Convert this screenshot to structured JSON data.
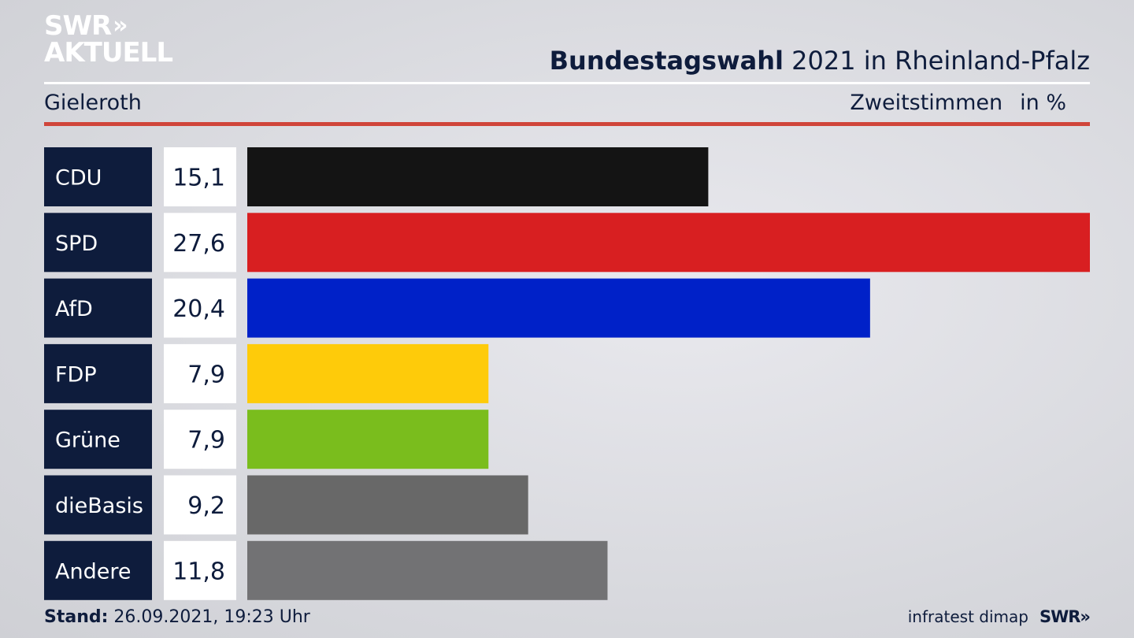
{
  "logo": {
    "line1": "SWR",
    "line1_mark": "»",
    "line2": "AKTUELL"
  },
  "header": {
    "title_bold": "Bundestagswahl",
    "title_rest": " 2021 in Rheinland-Pfalz",
    "location": "Gieleroth",
    "measure": "Zweitstimmen",
    "unit": "in %"
  },
  "chart_data": {
    "type": "bar",
    "orientation": "horizontal",
    "categories": [
      "CDU",
      "SPD",
      "AfD",
      "FDP",
      "Grüne",
      "dieBasis",
      "Andere"
    ],
    "values": [
      15.1,
      27.6,
      20.4,
      7.9,
      7.9,
      9.2,
      11.8
    ],
    "value_labels": [
      "15,1",
      "27,6",
      "20,4",
      "7,9",
      "7,9",
      "9,2",
      "11,8"
    ],
    "colors": [
      "#141414",
      "#d81f21",
      "#0021c8",
      "#fecb0a",
      "#7abd1d",
      "#686868",
      "#727274"
    ],
    "label_box_color": "#0e1c3c",
    "title": "Bundestagswahl 2021 in Rheinland-Pfalz",
    "xlabel": "",
    "ylabel": "",
    "xlim": [
      0,
      27.6
    ]
  },
  "footer": {
    "stand_label": "Stand:",
    "stand_value": " 26.09.2021, 19:23 Uhr",
    "source": "infratest dimap",
    "brand": "SWR",
    "brand_mark": "»"
  }
}
